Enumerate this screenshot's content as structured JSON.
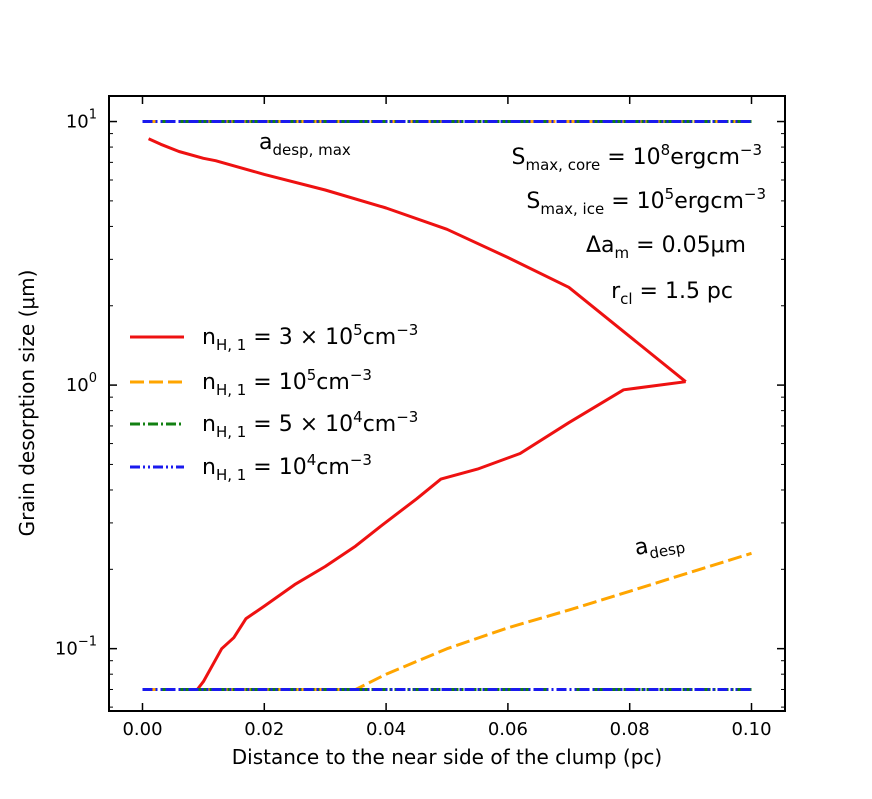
{
  "chart_data": {
    "type": "line",
    "xlabel": "Distance to the near side of the clump (pc)",
    "ylabel": "Grain desorption size (μm)",
    "xlim": [
      -0.0055,
      0.1055
    ],
    "ylim": [
      0.058,
      12.5
    ],
    "yscale": "log",
    "xticks": [
      0.0,
      0.02,
      0.04,
      0.06,
      0.08,
      0.1
    ],
    "xtick_labels": [
      "0.00",
      "0.02",
      "0.04",
      "0.06",
      "0.08",
      "0.10"
    ],
    "yticks": [
      {
        "value": 0.1,
        "base": "10",
        "exp": "−1"
      },
      {
        "value": 1,
        "base": "10",
        "exp": "0"
      },
      {
        "value": 10,
        "base": "10",
        "exp": "1"
      }
    ],
    "series": [
      {
        "name": "n_H,1 = 3×10^5 cm^-3",
        "color": "#ee1111",
        "dash": "",
        "upper": {
          "x": [
            0.001,
            0.003,
            0.006,
            0.01,
            0.012,
            0.02,
            0.03,
            0.04,
            0.05,
            0.06,
            0.07,
            0.0892
          ],
          "y": [
            8.6,
            8.2,
            7.7,
            7.25,
            7.1,
            6.3,
            5.5,
            4.7,
            3.9,
            3.05,
            2.35,
            1.03
          ]
        },
        "lower": {
          "x": [
            0.009,
            0.01,
            0.013,
            0.015,
            0.017,
            0.02,
            0.025,
            0.03,
            0.035,
            0.039,
            0.045,
            0.049,
            0.055,
            0.062,
            0.07,
            0.079,
            0.0892
          ],
          "y": [
            0.07,
            0.075,
            0.1,
            0.11,
            0.13,
            0.145,
            0.175,
            0.205,
            0.245,
            0.29,
            0.37,
            0.44,
            0.48,
            0.55,
            0.72,
            0.96,
            1.03
          ]
        }
      },
      {
        "name": "n_H,1 = 10^5 cm^-3",
        "color": "#ffa500",
        "dash": "14,5",
        "upper": {
          "x": [
            0.0,
            0.1
          ],
          "y": [
            10,
            10
          ]
        },
        "lower": {
          "x": [
            0.0,
            0.035,
            0.04,
            0.05,
            0.06,
            0.07,
            0.08,
            0.09,
            0.1
          ],
          "y": [
            0.07,
            0.07,
            0.08,
            0.1,
            0.12,
            0.14,
            0.165,
            0.195,
            0.23
          ]
        }
      },
      {
        "name": "n_H,1 = 5×10^4 cm^-3",
        "color": "#128012",
        "dash": "10,3,2,3",
        "upper": {
          "x": [
            0.0,
            0.1
          ],
          "y": [
            10,
            10
          ]
        },
        "lower": {
          "x": [
            0.0,
            0.1
          ],
          "y": [
            0.07,
            0.07
          ]
        }
      },
      {
        "name": "n_H,1 = 10^4 cm^-3",
        "color": "#1a1aee",
        "dash": "10,3,2,3,2,3",
        "upper": {
          "x": [
            0.0,
            0.1
          ],
          "y": [
            10,
            10
          ]
        },
        "lower": {
          "x": [
            0.0,
            0.1
          ],
          "y": [
            0.07,
            0.07
          ]
        }
      }
    ],
    "legend": {
      "placement": "center-left",
      "entries": [
        {
          "prefix": "n",
          "sub": "H, 1",
          "mid": " = 3 × 10",
          "sup": "5",
          "suffix": "cm",
          "sup2": "−3"
        },
        {
          "prefix": "n",
          "sub": "H, 1",
          "mid": " = 10",
          "sup": "5",
          "suffix": "cm",
          "sup2": "−3"
        },
        {
          "prefix": "n",
          "sub": "H, 1",
          "mid": " = 5 × 10",
          "sup": "4",
          "suffix": "cm",
          "sup2": "−3"
        },
        {
          "prefix": "n",
          "sub": "H, 1",
          "mid": " = 10",
          "sup": "4",
          "suffix": "cm",
          "sup2": "−3"
        }
      ]
    },
    "annotations": {
      "a_desp_max": {
        "main": "a",
        "sub": "desp, max"
      },
      "a_desp": {
        "main": "a",
        "sub": "desp"
      },
      "s_core": {
        "main": "S",
        "sub": "max, core",
        "mid": " = 10",
        "sup": "8",
        "suffix": "ergcm",
        "sup2": "−3"
      },
      "s_ice": {
        "main": "S",
        "sub": "max, ice",
        "mid": " = 10",
        "sup": "5",
        "suffix": "ergcm",
        "sup2": "−3"
      },
      "delta_a": {
        "main": "Δa",
        "sub": "m",
        "rest": " = 0.05μm"
      },
      "r_cl": {
        "main": "r",
        "sub": "cl",
        "rest": " = 1.5 pc"
      }
    }
  }
}
